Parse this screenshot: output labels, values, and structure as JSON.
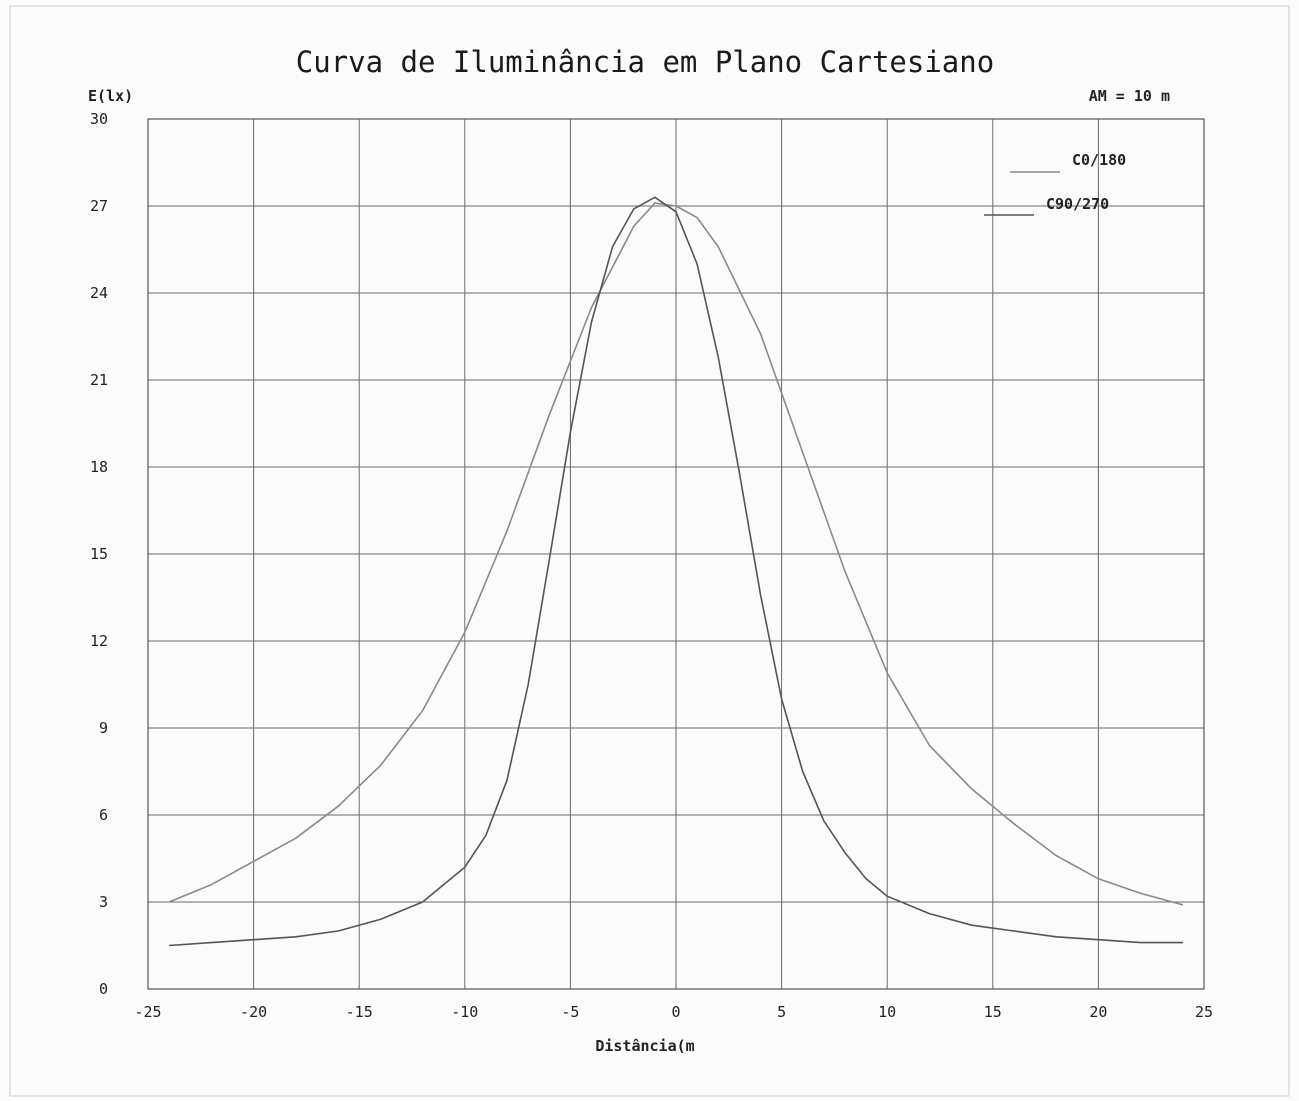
{
  "chart_data": {
    "type": "line",
    "title": "Curva de Iluminância em Plano Cartesiano",
    "ylabel": "E(lx)",
    "xlabel": "Distância(m",
    "annotation": "AM = 10 m",
    "xlim": [
      -25,
      25
    ],
    "ylim": [
      0,
      30
    ],
    "x_ticks": [
      -25,
      -20,
      -15,
      -10,
      -5,
      0,
      5,
      10,
      15,
      20,
      25
    ],
    "y_ticks": [
      0,
      3,
      6,
      9,
      12,
      15,
      18,
      21,
      24,
      27,
      30
    ],
    "grid": true,
    "legend_position": "top-right",
    "series": [
      {
        "name": "C0/180",
        "color": "#8a8a8a",
        "points": [
          [
            -24,
            3.0
          ],
          [
            -22,
            3.6
          ],
          [
            -20,
            4.4
          ],
          [
            -18,
            5.2
          ],
          [
            -16,
            6.3
          ],
          [
            -14,
            7.7
          ],
          [
            -12,
            9.6
          ],
          [
            -10,
            12.3
          ],
          [
            -8,
            15.8
          ],
          [
            -6,
            19.8
          ],
          [
            -4,
            23.5
          ],
          [
            -2,
            26.3
          ],
          [
            -1,
            27.1
          ],
          [
            0,
            27.0
          ],
          [
            1,
            26.6
          ],
          [
            2,
            25.6
          ],
          [
            4,
            22.6
          ],
          [
            6,
            18.5
          ],
          [
            8,
            14.4
          ],
          [
            10,
            10.9
          ],
          [
            12,
            8.4
          ],
          [
            14,
            6.9
          ],
          [
            16,
            5.7
          ],
          [
            18,
            4.6
          ],
          [
            20,
            3.8
          ],
          [
            22,
            3.3
          ],
          [
            24,
            2.9
          ]
        ]
      },
      {
        "name": "C90/270",
        "color": "#555555",
        "points": [
          [
            -24,
            1.5
          ],
          [
            -22,
            1.6
          ],
          [
            -20,
            1.7
          ],
          [
            -18,
            1.8
          ],
          [
            -16,
            2.0
          ],
          [
            -14,
            2.4
          ],
          [
            -12,
            3.0
          ],
          [
            -10,
            4.2
          ],
          [
            -9,
            5.3
          ],
          [
            -8,
            7.2
          ],
          [
            -7,
            10.5
          ],
          [
            -6,
            14.8
          ],
          [
            -5,
            19.2
          ],
          [
            -4,
            23.0
          ],
          [
            -3,
            25.6
          ],
          [
            -2,
            26.9
          ],
          [
            -1,
            27.3
          ],
          [
            0,
            26.8
          ],
          [
            1,
            25.0
          ],
          [
            2,
            21.8
          ],
          [
            3,
            17.8
          ],
          [
            4,
            13.6
          ],
          [
            5,
            10.0
          ],
          [
            6,
            7.5
          ],
          [
            7,
            5.8
          ],
          [
            8,
            4.7
          ],
          [
            9,
            3.8
          ],
          [
            10,
            3.2
          ],
          [
            12,
            2.6
          ],
          [
            14,
            2.2
          ],
          [
            16,
            2.0
          ],
          [
            18,
            1.8
          ],
          [
            20,
            1.7
          ],
          [
            22,
            1.6
          ],
          [
            24,
            1.6
          ]
        ]
      }
    ]
  }
}
